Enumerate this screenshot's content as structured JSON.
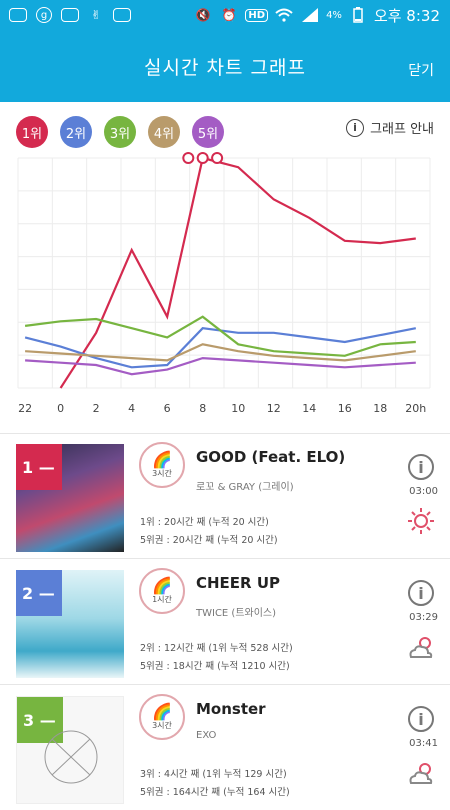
{
  "status_bar": {
    "battery": "4%",
    "time": "오후 8:32",
    "hd": "HD"
  },
  "header": {
    "title": "실시간 차트 그래프",
    "close": "닫기"
  },
  "ranks": [
    {
      "label": "1위",
      "color": "#d42a4f"
    },
    {
      "label": "2위",
      "color": "#5b7fd6"
    },
    {
      "label": "3위",
      "color": "#77b540"
    },
    {
      "label": "4위",
      "color": "#b99b6b"
    },
    {
      "label": "5위",
      "color": "#a45cc4"
    }
  ],
  "guide": {
    "label": "그래프 안내",
    "icon": "info-icon"
  },
  "chart_data": {
    "type": "line",
    "x": [
      "22",
      "0",
      "2",
      "4",
      "6",
      "8",
      "10",
      "12",
      "14",
      "16",
      "18",
      "20h"
    ],
    "series": [
      {
        "color": "#d42a4f",
        "values": [
          null,
          null,
          2.4,
          6.0,
          3.1,
          10.0,
          9.6,
          8.2,
          7.4,
          6.4,
          6.3,
          6.5
        ]
      },
      {
        "color": "#5b7fd6",
        "values": [
          2.2,
          1.8,
          1.3,
          0.9,
          1.0,
          2.6,
          2.4,
          2.4,
          2.2,
          2.0,
          2.3,
          2.6
        ]
      },
      {
        "color": "#77b540",
        "values": [
          2.7,
          2.9,
          3.0,
          2.6,
          2.2,
          3.1,
          1.9,
          1.6,
          1.5,
          1.4,
          1.9,
          2.0
        ]
      },
      {
        "color": "#b99b6b",
        "values": [
          1.6,
          1.5,
          1.4,
          1.3,
          1.2,
          1.9,
          1.6,
          1.4,
          1.3,
          1.2,
          1.4,
          1.6
        ]
      },
      {
        "color": "#a45cc4",
        "values": [
          1.2,
          1.1,
          1.0,
          0.6,
          0.8,
          1.3,
          1.2,
          1.1,
          1.0,
          0.9,
          1.0,
          1.1
        ]
      }
    ],
    "grid": true,
    "legend": "top-left"
  },
  "songs": [
    {
      "rank_badge": "1 —",
      "badge_color": "#d42a4f",
      "duration": "3시간",
      "title": "GOOD (Feat. ELO)",
      "artist": "로꼬 & GRAY (그레이)",
      "stat1": "1위 : 20시간 째 (누적 20 시간)",
      "stat2": "5위권 : 20시간 째 (누적 20 시간)",
      "time": "03:00",
      "weather": "sun-icon"
    },
    {
      "rank_badge": "2 —",
      "badge_color": "#5b7fd6",
      "duration": "1시간",
      "title": "CHEER UP",
      "artist": "TWICE (트와이스)",
      "stat1": "2위 : 12시간 째 (1위 누적 528 시간)",
      "stat2": "5위권 : 18시간 째 (누적 1210 시간)",
      "time": "03:29",
      "weather": "partly-cloudy-icon"
    },
    {
      "rank_badge": "3 —",
      "badge_color": "#77b540",
      "duration": "3시간",
      "title": "Monster",
      "artist": "EXO",
      "stat1": "3위 : 4시간 째 (1위 누적 129 시간)",
      "stat2": "5위권 : 164시간 째 (누적 164 시간)",
      "time": "03:41",
      "weather": "partly-cloudy-icon"
    }
  ]
}
